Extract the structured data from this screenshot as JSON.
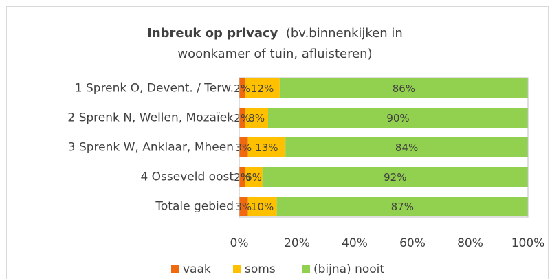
{
  "chart_data": {
    "type": "stacked_bar_horizontal",
    "title": "Inbreuk op privacy",
    "subtitle": "(bv.binnenkijken in woonkamer of tuin, afluisteren)",
    "categories": [
      "1 Sprenk O, Devent. / Terw.",
      "2 Sprenk N, Wellen, Mozaïek",
      "3 Sprenk W, Anklaar, Mheen",
      "4 Osseveld oost",
      "Totale gebied"
    ],
    "series": [
      {
        "name": "vaak",
        "color": "#f0690f",
        "values": [
          2,
          2,
          3,
          2,
          3
        ],
        "value_labels": [
          "2%",
          "2%",
          "3%",
          "2%",
          "3%"
        ]
      },
      {
        "name": "soms",
        "color": "#ffc000",
        "values": [
          12,
          8,
          13,
          6,
          10
        ],
        "value_labels": [
          "12%",
          "8%",
          "13%",
          "6%",
          "10%"
        ]
      },
      {
        "name": "(bijna) nooit",
        "color": "#92d050",
        "values": [
          86,
          90,
          84,
          92,
          87
        ],
        "value_labels": [
          "86%",
          "90%",
          "84%",
          "92%",
          "87%"
        ]
      }
    ],
    "xlim": [
      0,
      100
    ],
    "xticks": [
      {
        "value": 0,
        "label": "0%"
      },
      {
        "value": 20,
        "label": "20%"
      },
      {
        "value": 40,
        "label": "40%"
      },
      {
        "value": 60,
        "label": "60%"
      },
      {
        "value": 80,
        "label": "80%"
      },
      {
        "value": 100,
        "label": "100%"
      }
    ],
    "grid": false,
    "legend": "bottom"
  }
}
